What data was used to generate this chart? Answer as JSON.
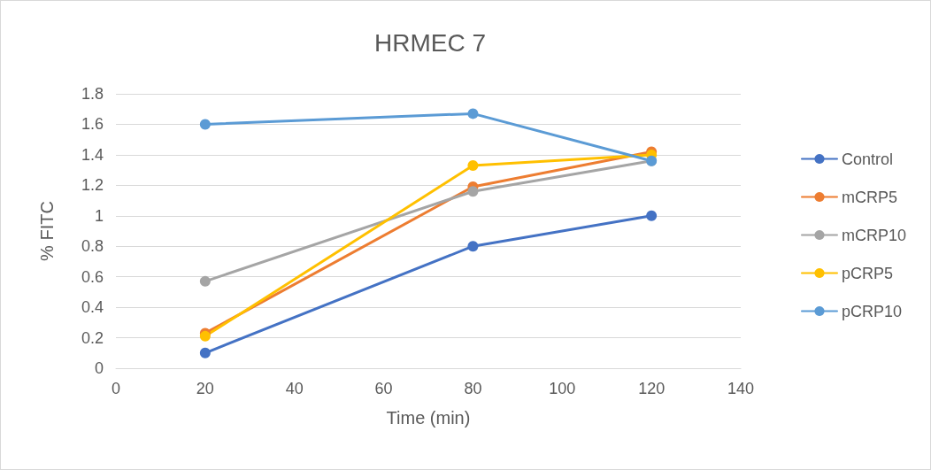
{
  "chart_data": {
    "type": "line",
    "title": "HRMEC 7",
    "xlabel": "Time (min)",
    "ylabel": "% FITC",
    "x": [
      20,
      80,
      120
    ],
    "series": [
      {
        "name": "Control",
        "color": "#4472c4",
        "values": [
          0.1,
          0.8,
          1.0
        ]
      },
      {
        "name": "mCRP5",
        "color": "#ed7d31",
        "values": [
          0.23,
          1.19,
          1.42
        ]
      },
      {
        "name": "mCRP10",
        "color": "#a5a5a5",
        "values": [
          0.57,
          1.16,
          1.36
        ]
      },
      {
        "name": "pCRP5",
        "color": "#ffc000",
        "values": [
          0.21,
          1.33,
          1.4
        ]
      },
      {
        "name": "pCRP10",
        "color": "#5b9bd5",
        "values": [
          1.6,
          1.67,
          1.36
        ]
      }
    ],
    "xlim": [
      0,
      140
    ],
    "xticks": [
      0,
      20,
      40,
      60,
      80,
      100,
      120,
      140
    ],
    "ylim": [
      0,
      1.8
    ],
    "yticks": [
      0,
      0.2,
      0.4,
      0.6,
      0.8,
      1,
      1.2,
      1.4,
      1.6,
      1.8
    ],
    "grid": "y",
    "legend": "right",
    "marker": "circle",
    "line_style": "solid"
  }
}
